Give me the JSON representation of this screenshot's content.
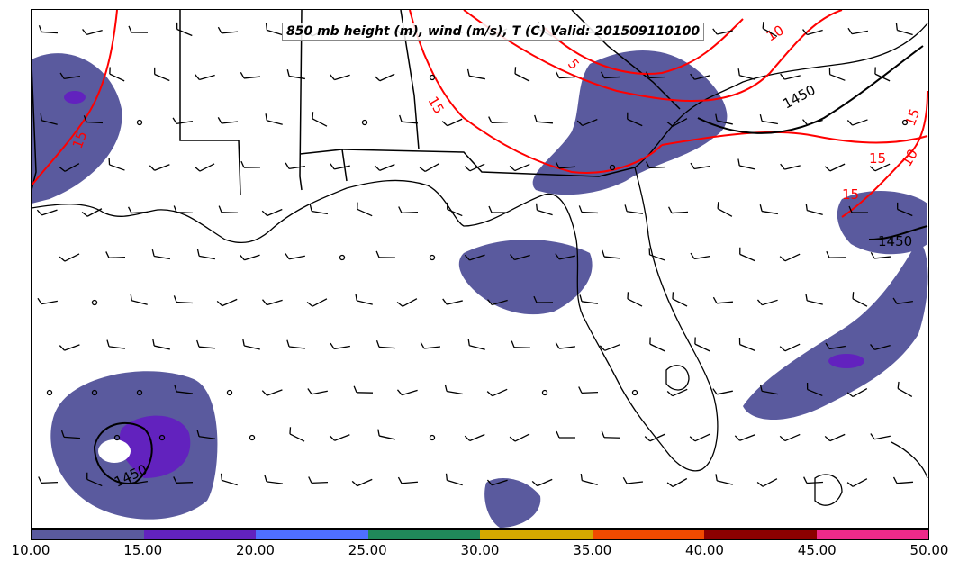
{
  "title": "850 mb height (m), wind (m/s), T (C) Valid: 201509110100",
  "colorbar": {
    "colors": [
      "#5a5a9e",
      "#6222be",
      "#4f6fff",
      "#20885a",
      "#d4a800",
      "#f04a00",
      "#8c0000",
      "#ee2a8a"
    ],
    "labels": [
      "10.00",
      "15.00",
      "20.00",
      "25.00",
      "30.00",
      "35.00",
      "40.00",
      "45.00",
      "50.00"
    ]
  },
  "contours": {
    "height_labels": [
      "1450",
      "1450",
      "1450"
    ],
    "temperature_labels": [
      "15",
      "15",
      "10",
      "5",
      "15",
      "15",
      "15",
      "10"
    ],
    "height_color": "#000000",
    "temperature_color": "#ff0000"
  },
  "wind_field": {
    "glyph": "barb",
    "calm_glyph": "circle"
  }
}
